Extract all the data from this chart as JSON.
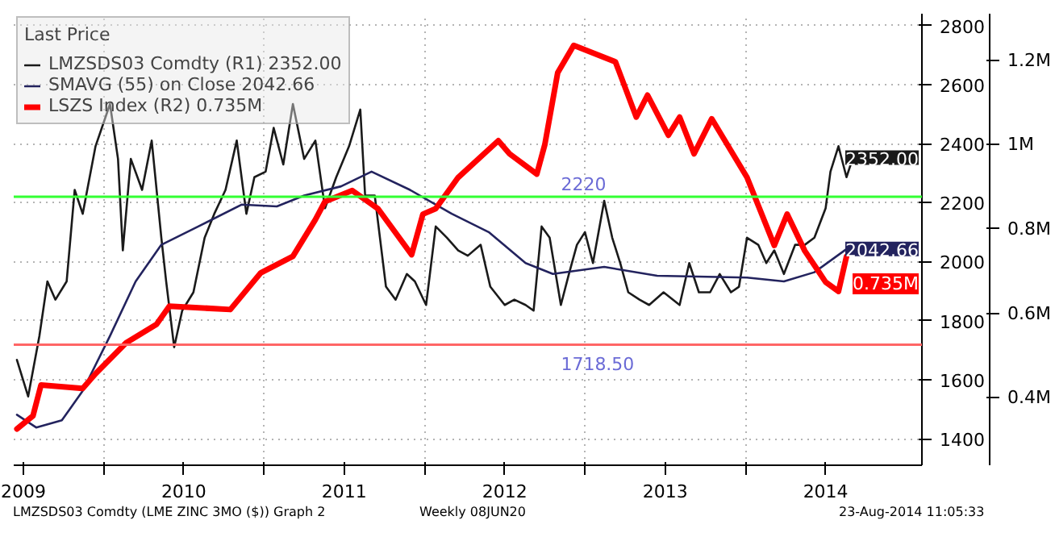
{
  "chart_data": {
    "type": "line",
    "legend_title": "Last Price",
    "legend": "top left",
    "grid": true,
    "xlim": [
      2009.44,
      2015.1
    ],
    "xticks": [
      {
        "value": 2009.5,
        "label": "2009"
      },
      {
        "value": 2010,
        "label": null
      },
      {
        "value": 2010.5,
        "label": "2010"
      },
      {
        "value": 2011,
        "label": null
      },
      {
        "value": 2011.5,
        "label": "2011"
      },
      {
        "value": 2012,
        "label": null
      },
      {
        "value": 2012.5,
        "label": "2012"
      },
      {
        "value": 2013,
        "label": null
      },
      {
        "value": 2013.5,
        "label": "2013"
      },
      {
        "value": 2014,
        "label": null
      },
      {
        "value": 2014.5,
        "label": "2014"
      }
    ],
    "ylim": [
      1310,
      2840
    ],
    "yticks": [
      1400,
      1600,
      1800,
      2000,
      2200,
      2400,
      2600,
      2800
    ],
    "y2lim": [
      0.24,
      1.31
    ],
    "y2ticks": [
      {
        "value": 0.4,
        "label": "0.4M"
      },
      {
        "value": 0.6,
        "label": "0.6M"
      },
      {
        "value": 0.8,
        "label": "0.8M"
      },
      {
        "value": 1.0,
        "label": "1M"
      },
      {
        "value": 1.2,
        "label": "1.2M"
      }
    ],
    "series": [
      {
        "name": "LMZSDS03 Comdty (R1) 2352.00",
        "color": "#1a1a1a",
        "x": [
          2009.46,
          2009.53,
          2009.6,
          2009.65,
          2009.7,
          2009.77,
          2009.82,
          2009.87,
          2009.95,
          2010.04,
          2010.09,
          2010.12,
          2010.17,
          2010.24,
          2010.3,
          2010.36,
          2010.39,
          2010.44,
          2010.49,
          2010.56,
          2010.63,
          2010.69,
          2010.76,
          2010.83,
          2010.89,
          2010.94,
          2011.01,
          2011.06,
          2011.12,
          2011.18,
          2011.25,
          2011.32,
          2011.38,
          2011.45,
          2011.53,
          2011.6,
          2011.63,
          2011.69,
          2011.76,
          2011.82,
          2011.89,
          2011.94,
          2012.01,
          2012.07,
          2012.14,
          2012.21,
          2012.27,
          2012.35,
          2012.41,
          2012.5,
          2012.56,
          2012.63,
          2012.68,
          2012.73,
          2012.78,
          2012.85,
          2012.9,
          2012.95,
          2013.0,
          2013.05,
          2013.12,
          2013.17,
          2013.22,
          2013.27,
          2013.34,
          2013.4,
          2013.49,
          2013.59,
          2013.65,
          2013.71,
          2013.78,
          2013.84,
          2013.91,
          2013.96,
          2014.01,
          2014.08,
          2014.13,
          2014.18,
          2014.24,
          2014.31,
          2014.37,
          2014.43,
          2014.5,
          2014.53,
          2014.58,
          2014.63,
          2014.67
        ],
        "values": [
          1667,
          1543,
          1748,
          1933,
          1871,
          1933,
          2243,
          2162,
          2391,
          2534,
          2348,
          2038,
          2348,
          2243,
          2410,
          2081,
          1933,
          1710,
          1834,
          1896,
          2081,
          2162,
          2243,
          2410,
          2162,
          2286,
          2305,
          2453,
          2329,
          2534,
          2348,
          2410,
          2181,
          2286,
          2391,
          2515,
          2224,
          2224,
          1915,
          1871,
          1958,
          1933,
          1853,
          2119,
          2081,
          2038,
          2020,
          2057,
          1915,
          1853,
          1871,
          1853,
          1834,
          2119,
          2081,
          1853,
          1958,
          2057,
          2100,
          1995,
          2206,
          2081,
          1995,
          1896,
          1871,
          1853,
          1896,
          1853,
          1995,
          1896,
          1896,
          1958,
          1896,
          1915,
          2081,
          2057,
          1995,
          2038,
          1958,
          2057,
          2057,
          2081,
          2181,
          2305,
          2391,
          2286,
          2352
        ],
        "value_labels": [
          null,
          null,
          null,
          null,
          null,
          null,
          null,
          null,
          null,
          null,
          null,
          null,
          null,
          null,
          null,
          null,
          null,
          null,
          null,
          null,
          null,
          null,
          null,
          null,
          null,
          null,
          null,
          null,
          null,
          null,
          null,
          null,
          null,
          null,
          null,
          null,
          null,
          null,
          null,
          null,
          null,
          null,
          null,
          null,
          null,
          null,
          null,
          null,
          null,
          null,
          null,
          null,
          null,
          null,
          null,
          null,
          null,
          null,
          null,
          null,
          null,
          null,
          null,
          null,
          null,
          null,
          null,
          null,
          null,
          null,
          null,
          null,
          null,
          null,
          null,
          null,
          null,
          null,
          null,
          null,
          null,
          null,
          null,
          null,
          null,
          null,
          "2352.00"
        ]
      },
      {
        "name": "SMAVG (55) on Close 2042.66",
        "color": "#23235e",
        "x": [
          2009.46,
          2009.58,
          2009.74,
          2009.87,
          2010.04,
          2010.2,
          2010.36,
          2010.59,
          2010.86,
          2011.08,
          2011.25,
          2011.48,
          2011.67,
          2011.91,
          2012.17,
          2012.4,
          2012.63,
          2012.8,
          2013.12,
          2013.45,
          2014.01,
          2014.24,
          2014.43,
          2014.63
        ],
        "values": [
          1481,
          1438,
          1462,
          1562,
          1748,
          1933,
          2057,
          2119,
          2193,
          2187,
          2224,
          2255,
          2305,
          2243,
          2162,
          2100,
          1995,
          1958,
          1982,
          1952,
          1946,
          1933,
          1964,
          2042.66
        ],
        "value_labels": [
          null,
          null,
          null,
          null,
          null,
          null,
          null,
          null,
          null,
          null,
          null,
          null,
          null,
          null,
          null,
          null,
          null,
          null,
          null,
          null,
          null,
          null,
          null,
          "2042.66"
        ]
      },
      {
        "name": "LSZS Index (R2) 0.735M",
        "color": "#ff0000",
        "axis": "y2",
        "x": [
          2009.46,
          2009.56,
          2009.61,
          2009.87,
          2009.95,
          2010.14,
          2010.33,
          2010.41,
          2010.79,
          2010.98,
          2011.18,
          2011.32,
          2011.38,
          2011.55,
          2011.71,
          2011.92,
          2011.99,
          2012.07,
          2012.21,
          2012.46,
          2012.53,
          2012.7,
          2012.75,
          2012.83,
          2012.93,
          2013.19,
          2013.32,
          2013.39,
          2013.52,
          2013.59,
          2013.68,
          2013.79,
          2014.01,
          2014.18,
          2014.26,
          2014.37,
          2014.5,
          2014.58,
          2014.63
        ],
        "values": [
          0.326,
          0.357,
          0.43,
          0.422,
          0.457,
          0.53,
          0.574,
          0.617,
          0.609,
          0.696,
          0.735,
          0.822,
          0.865,
          0.891,
          0.848,
          0.739,
          0.835,
          0.848,
          0.922,
          1.009,
          0.978,
          0.93,
          1.0,
          1.17,
          1.235,
          1.196,
          1.065,
          1.117,
          1.022,
          1.065,
          0.978,
          1.061,
          0.922,
          0.761,
          0.835,
          0.748,
          0.674,
          0.652,
          0.735
        ],
        "value_labels": [
          null,
          null,
          null,
          null,
          null,
          null,
          null,
          null,
          null,
          null,
          null,
          null,
          null,
          null,
          null,
          null,
          null,
          null,
          null,
          null,
          null,
          null,
          null,
          null,
          null,
          null,
          null,
          null,
          null,
          null,
          null,
          null,
          null,
          null,
          null,
          null,
          null,
          null,
          "0.735M"
        ]
      }
    ],
    "ref_lines": [
      {
        "axis": "y",
        "value": 2220,
        "label": "2220",
        "color": "#33ff33"
      },
      {
        "axis": "y",
        "value": 1718.5,
        "label": "1718.50",
        "color": "#ff6666"
      }
    ],
    "annotations": [
      "LMZSDS03 Comdty (LME ZINC 3MO ($)) Graph 2",
      "Weekly 08JUN20",
      "23-Aug-2014 11:05:33"
    ]
  }
}
